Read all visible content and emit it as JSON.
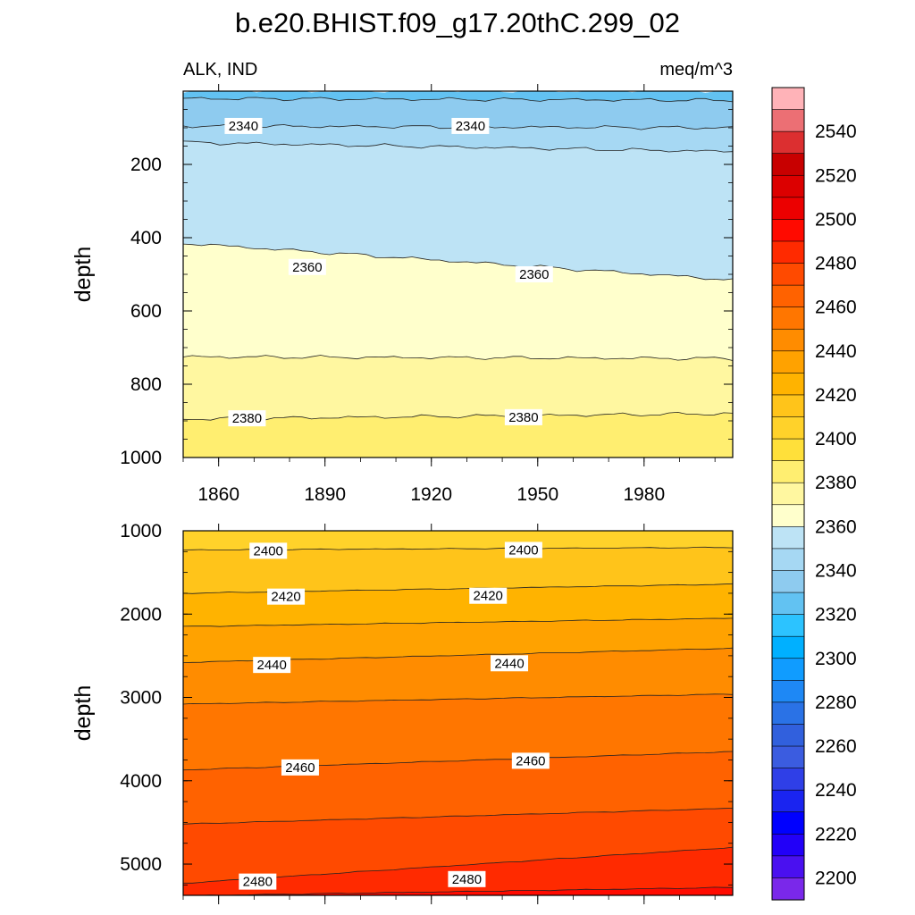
{
  "figure": {
    "title": "b.e20.BHIST.f09_g17.20thC.299_02",
    "left_label": "ALK, IND",
    "right_label": "meq/m^3"
  },
  "chart_data": [
    {
      "type": "heatmap",
      "panel": "upper",
      "field": "ALK",
      "region": "IND",
      "units": "meq/m^3",
      "x_ticks": [
        1860,
        1890,
        1920,
        1950,
        1980
      ],
      "xlim": [
        1850,
        2005
      ],
      "ylabel": "depth",
      "y_ticks": [
        200,
        400,
        600,
        800,
        1000
      ],
      "ylim": [
        1000,
        0
      ],
      "y_inverted": true,
      "contour_interval": 10,
      "fill_bands": [
        {
          "range": [
            2320,
            2330
          ],
          "boundary_depth_start": 0,
          "boundary_depth_end": 0
        },
        {
          "range": [
            2330,
            2340
          ],
          "boundary_depth_start": 20,
          "boundary_depth_end": 25
        },
        {
          "range": [
            2340,
            2350
          ],
          "boundary_depth_start": 95,
          "boundary_depth_end": 100
        },
        {
          "range": [
            2350,
            2360
          ],
          "boundary_depth_start": 140,
          "boundary_depth_end": 165
        },
        {
          "range": [
            2360,
            2370
          ],
          "boundary_depth_start": 415,
          "boundary_depth_end": 515
        },
        {
          "range": [
            2370,
            2380
          ],
          "boundary_depth_start": 725,
          "boundary_depth_end": 730
        },
        {
          "range": [
            2380,
            2390
          ],
          "boundary_depth_start": 895,
          "boundary_depth_end": 880
        }
      ],
      "contour_labels": [
        {
          "value": "2340",
          "x": 1867,
          "depth": 95
        },
        {
          "value": "2340",
          "x": 1931,
          "depth": 95
        },
        {
          "value": "2360",
          "x": 1885,
          "depth": 480
        },
        {
          "value": "2360",
          "x": 1949,
          "depth": 500
        },
        {
          "value": "2380",
          "x": 1868,
          "depth": 893
        },
        {
          "value": "2380",
          "x": 1946,
          "depth": 890
        }
      ]
    },
    {
      "type": "heatmap",
      "panel": "lower",
      "field": "ALK",
      "region": "IND",
      "units": "meq/m^3",
      "xlim": [
        1850,
        2005
      ],
      "ylabel": "depth",
      "y_ticks": [
        1000,
        2000,
        3000,
        4000,
        5000
      ],
      "ylim": [
        5375,
        1000
      ],
      "y_inverted": true,
      "contour_interval": 10,
      "fill_bands": [
        {
          "range": [
            2400,
            2410
          ],
          "boundary_depth_start": 1000,
          "boundary_depth_end": 1000
        },
        {
          "range": [
            2410,
            2420
          ],
          "boundary_depth_start": 1230,
          "boundary_depth_end": 1200
        },
        {
          "range": [
            2420,
            2430
          ],
          "boundary_depth_start": 1750,
          "boundary_depth_end": 1640
        },
        {
          "range": [
            2430,
            2440
          ],
          "boundary_depth_start": 2150,
          "boundary_depth_end": 2050
        },
        {
          "range": [
            2440,
            2450
          ],
          "boundary_depth_start": 2580,
          "boundary_depth_end": 2410
        },
        {
          "range": [
            2450,
            2460
          ],
          "boundary_depth_start": 3080,
          "boundary_depth_end": 2960
        },
        {
          "range": [
            2460,
            2470
          ],
          "boundary_depth_start": 3870,
          "boundary_depth_end": 3650
        },
        {
          "range": [
            2470,
            2480
          ],
          "boundary_depth_start": 4520,
          "boundary_depth_end": 4330
        },
        {
          "range": [
            2480,
            2490
          ],
          "boundary_depth_start": 5230,
          "boundary_depth_end": 4800
        },
        {
          "range": [
            2490,
            2500
          ],
          "boundary_depth_start": 5380,
          "boundary_depth_end": 5280
        }
      ],
      "contour_labels": [
        {
          "value": "2400",
          "x": 1874,
          "depth": 1240
        },
        {
          "value": "2400",
          "x": 1946,
          "depth": 1230
        },
        {
          "value": "2420",
          "x": 1879,
          "depth": 1790
        },
        {
          "value": "2420",
          "x": 1936,
          "depth": 1780
        },
        {
          "value": "2440",
          "x": 1875,
          "depth": 2610
        },
        {
          "value": "2440",
          "x": 1942,
          "depth": 2590
        },
        {
          "value": "2460",
          "x": 1883,
          "depth": 3840
        },
        {
          "value": "2460",
          "x": 1948,
          "depth": 3760
        },
        {
          "value": "2480",
          "x": 1871,
          "depth": 5210
        },
        {
          "value": "2480",
          "x": 1930,
          "depth": 5180
        }
      ]
    }
  ],
  "colorbar": {
    "tick_labels": [
      "2540",
      "2520",
      "2500",
      "2480",
      "2460",
      "2440",
      "2420",
      "2400",
      "2380",
      "2360",
      "2340",
      "2320",
      "2300",
      "2280",
      "2260",
      "2240",
      "2220",
      "2200"
    ],
    "colors_top_to_bottom": [
      "#ffb3b8",
      "#ec6f74",
      "#dc2f30",
      "#c80000",
      "#dc0000",
      "#ec0000",
      "#ff0a00",
      "#ff2a00",
      "#ff4a00",
      "#ff6200",
      "#ff7600",
      "#ff8c00",
      "#ffa200",
      "#ffb300",
      "#ffc41a",
      "#ffd22a",
      "#ffe03a",
      "#ffee70",
      "#fff7a0",
      "#ffffcc",
      "#bde3f5",
      "#a6d8f3",
      "#8ecbef",
      "#62c2f2",
      "#2cc3ff",
      "#00b0ff",
      "#109cff",
      "#1e88f5",
      "#2a72e6",
      "#3160dd",
      "#3b5ce0",
      "#2f3fe7",
      "#1a24f0",
      "#0000ff",
      "#2200f8",
      "#4a10f0",
      "#7a28ea"
    ]
  }
}
